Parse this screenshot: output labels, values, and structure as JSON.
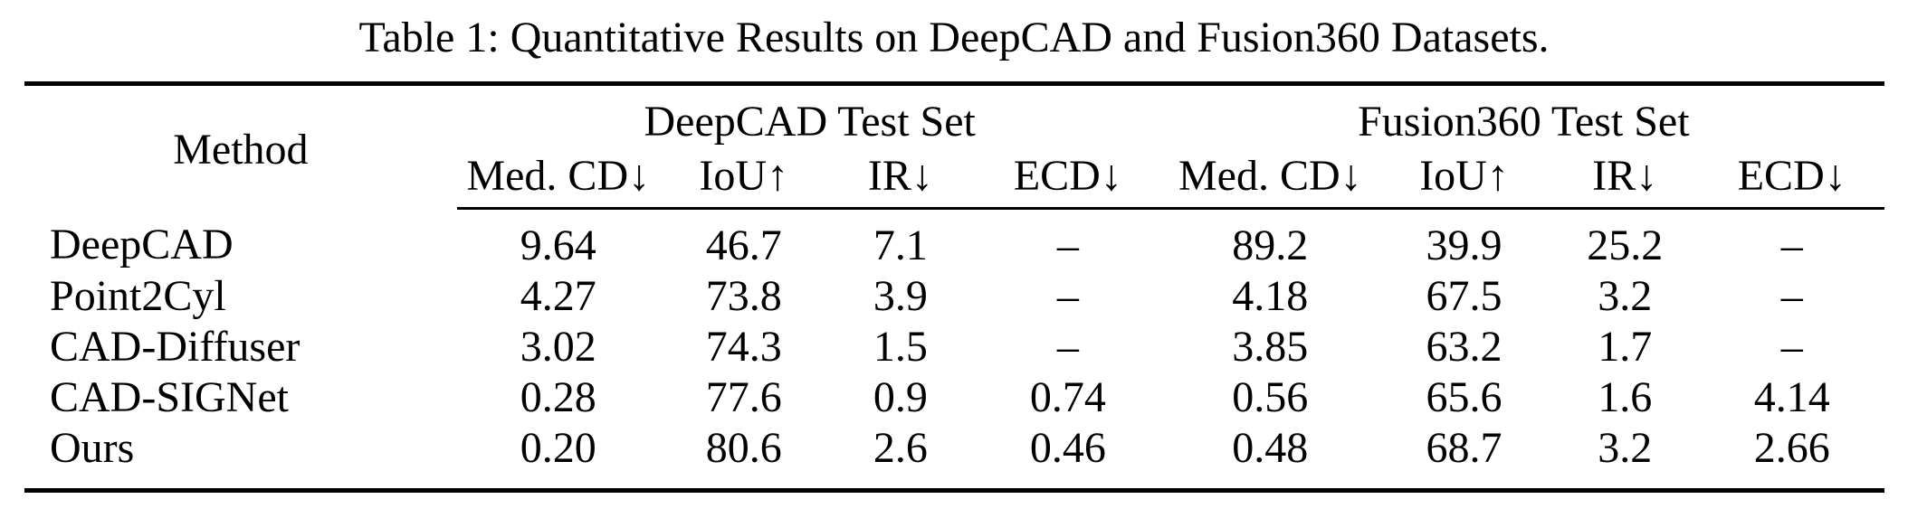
{
  "caption": "Table 1: Quantitative Results on DeepCAD and Fusion360 Datasets.",
  "table": {
    "method_header": "Method",
    "groups": [
      {
        "label": "DeepCAD Test Set"
      },
      {
        "label": "Fusion360 Test Set"
      }
    ],
    "metric_headers": [
      "Med. CD↓",
      "IoU↑",
      "IR↓",
      "ECD↓",
      "Med. CD↓",
      "IoU↑",
      "IR↓",
      "ECD↓"
    ],
    "rows": [
      {
        "method": "DeepCAD",
        "cells": [
          {
            "v": "9.64",
            "bold": false
          },
          {
            "v": "46.7",
            "bold": false
          },
          {
            "v": "7.1",
            "bold": false
          },
          {
            "v": "–",
            "bold": false
          },
          {
            "v": "89.2",
            "bold": false
          },
          {
            "v": "39.9",
            "bold": false
          },
          {
            "v": "25.2",
            "bold": false
          },
          {
            "v": "–",
            "bold": false
          }
        ]
      },
      {
        "method": "Point2Cyl",
        "cells": [
          {
            "v": "4.27",
            "bold": false
          },
          {
            "v": "73.8",
            "bold": false
          },
          {
            "v": "3.9",
            "bold": false
          },
          {
            "v": "–",
            "bold": false
          },
          {
            "v": "4.18",
            "bold": false
          },
          {
            "v": "67.5",
            "bold": false
          },
          {
            "v": "3.2",
            "bold": false
          },
          {
            "v": "–",
            "bold": false
          }
        ]
      },
      {
        "method": "CAD-Diffuser",
        "cells": [
          {
            "v": "3.02",
            "bold": false
          },
          {
            "v": "74.3",
            "bold": false
          },
          {
            "v": "1.5",
            "bold": false
          },
          {
            "v": "–",
            "bold": false
          },
          {
            "v": "3.85",
            "bold": false
          },
          {
            "v": "63.2",
            "bold": false
          },
          {
            "v": "1.7",
            "bold": false
          },
          {
            "v": "–",
            "bold": false
          }
        ]
      },
      {
        "method": "CAD-SIGNet",
        "cells": [
          {
            "v": "0.28",
            "bold": false
          },
          {
            "v": "77.6",
            "bold": false
          },
          {
            "v": "0.9",
            "bold": true
          },
          {
            "v": "0.74",
            "bold": false
          },
          {
            "v": "0.56",
            "bold": false
          },
          {
            "v": "65.6",
            "bold": false
          },
          {
            "v": "1.6",
            "bold": true
          },
          {
            "v": "4.14",
            "bold": false
          }
        ]
      },
      {
        "method": "Ours",
        "cells": [
          {
            "v": "0.20",
            "bold": true
          },
          {
            "v": "80.6",
            "bold": true
          },
          {
            "v": "2.6",
            "bold": false
          },
          {
            "v": "0.46",
            "bold": true
          },
          {
            "v": "0.48",
            "bold": true
          },
          {
            "v": "68.7",
            "bold": true
          },
          {
            "v": "3.2",
            "bold": false
          },
          {
            "v": "2.66",
            "bold": true
          }
        ]
      }
    ]
  }
}
